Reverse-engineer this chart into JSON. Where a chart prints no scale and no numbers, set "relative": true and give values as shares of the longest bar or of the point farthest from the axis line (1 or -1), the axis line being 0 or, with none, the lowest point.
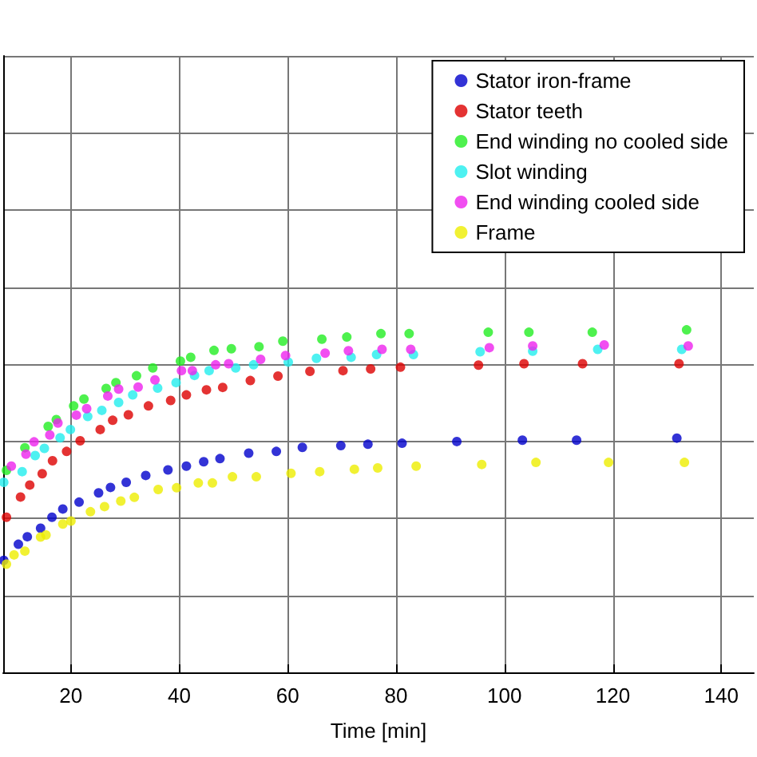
{
  "chart_data": {
    "type": "scatter",
    "xlabel": "Time [min]",
    "xlim": [
      7.5,
      146
    ],
    "xticks": [
      20,
      40,
      60,
      80,
      100,
      120,
      140
    ],
    "relative": true,
    "grid": true,
    "legend": "top right",
    "marker": "circle",
    "series": [
      {
        "name": "Stator iron-frame",
        "color": "#0000cc",
        "x": [
          7.6,
          10.3,
          11.95,
          14.4,
          16.5,
          18.5,
          21.5,
          25.1,
          27.3,
          30.2,
          33.8,
          37.9,
          41.3,
          44.5,
          47.5,
          52.8,
          57.9,
          62.7,
          69.8,
          74.8,
          81.1,
          91.2,
          103.3,
          113.3,
          131.8
        ],
        "values": [
          0.327,
          0.374,
          0.396,
          0.421,
          0.453,
          0.477,
          0.497,
          0.524,
          0.54,
          0.555,
          0.575,
          0.591,
          0.602,
          0.615,
          0.624,
          0.64,
          0.645,
          0.657,
          0.662,
          0.666,
          0.669,
          0.674,
          0.678,
          0.678,
          0.684
        ]
      },
      {
        "name": "Stator teeth",
        "color": "#dd0000",
        "x": [
          8.1,
          10.7,
          12.4,
          14.7,
          16.6,
          19.2,
          21.7,
          25.4,
          27.7,
          30.6,
          34.3,
          38.4,
          41.3,
          45.0,
          48.0,
          53.1,
          58.2,
          64.1,
          70.2,
          75.3,
          80.8,
          95.2,
          103.6,
          114.4,
          132.2
        ],
        "values": [
          0.453,
          0.512,
          0.547,
          0.58,
          0.618,
          0.645,
          0.676,
          0.709,
          0.736,
          0.752,
          0.778,
          0.794,
          0.81,
          0.825,
          0.832,
          0.852,
          0.865,
          0.879,
          0.881,
          0.886,
          0.891,
          0.897,
          0.901,
          0.901,
          0.901
        ]
      },
      {
        "name": "End winding no cooled side",
        "color": "#22ee22",
        "x": [
          8.1,
          11.5,
          15.8,
          17.3,
          20.5,
          22.4,
          26.5,
          28.3,
          32.1,
          35.1,
          40.2,
          42.1,
          46.4,
          49.6,
          54.7,
          59.1,
          66.3,
          70.9,
          77.2,
          82.4,
          97.0,
          104.5,
          116.2,
          133.6
        ],
        "values": [
          0.59,
          0.656,
          0.718,
          0.738,
          0.778,
          0.798,
          0.829,
          0.846,
          0.866,
          0.889,
          0.909,
          0.92,
          0.94,
          0.945,
          0.951,
          0.967,
          0.973,
          0.979,
          0.989,
          0.989,
          0.993,
          0.993,
          0.993,
          1
        ]
      },
      {
        "name": "Slot winding",
        "color": "#22eeee",
        "x": [
          7.6,
          11.0,
          13.4,
          15.1,
          18.0,
          19.9,
          23.1,
          25.7,
          28.8,
          31.4,
          36.0,
          39.4,
          42.8,
          45.5,
          50.4,
          53.7,
          60.1,
          65.3,
          71.7,
          76.4,
          83.2,
          95.5,
          105.2,
          117.2,
          132.7
        ],
        "values": [
          0.555,
          0.586,
          0.633,
          0.654,
          0.685,
          0.709,
          0.747,
          0.765,
          0.788,
          0.81,
          0.83,
          0.846,
          0.867,
          0.881,
          0.889,
          0.898,
          0.906,
          0.917,
          0.92,
          0.928,
          0.928,
          0.936,
          0.938,
          0.943,
          0.943
        ]
      },
      {
        "name": "End winding cooled side",
        "color": "#ee22ee",
        "x": [
          9.0,
          11.7,
          13.2,
          16.1,
          17.6,
          21.0,
          22.9,
          26.8,
          28.8,
          32.4,
          35.5,
          40.4,
          42.4,
          46.7,
          49.1,
          55.0,
          59.6,
          66.9,
          71.2,
          77.4,
          82.7,
          97.2,
          105.2,
          118.4,
          133.9
        ],
        "values": [
          0.602,
          0.637,
          0.673,
          0.693,
          0.728,
          0.751,
          0.77,
          0.807,
          0.827,
          0.833,
          0.854,
          0.881,
          0.881,
          0.898,
          0.901,
          0.914,
          0.925,
          0.932,
          0.939,
          0.943,
          0.943,
          0.948,
          0.953,
          0.956,
          0.953
        ]
      },
      {
        "name": "Frame",
        "color": "#eeee00",
        "x": [
          8.1,
          9.5,
          11.5,
          14.4,
          15.4,
          18.5,
          20.0,
          23.6,
          26.2,
          29.2,
          31.7,
          36.1,
          39.5,
          43.5,
          46.1,
          49.8,
          54.2,
          60.6,
          65.9,
          72.3,
          76.6,
          83.7,
          95.8,
          105.8,
          119.2,
          133.2
        ],
        "values": [
          0.316,
          0.343,
          0.354,
          0.395,
          0.401,
          0.433,
          0.442,
          0.469,
          0.484,
          0.5,
          0.511,
          0.534,
          0.539,
          0.553,
          0.553,
          0.571,
          0.571,
          0.581,
          0.586,
          0.593,
          0.597,
          0.602,
          0.607,
          0.613,
          0.613,
          0.613
        ]
      }
    ]
  }
}
